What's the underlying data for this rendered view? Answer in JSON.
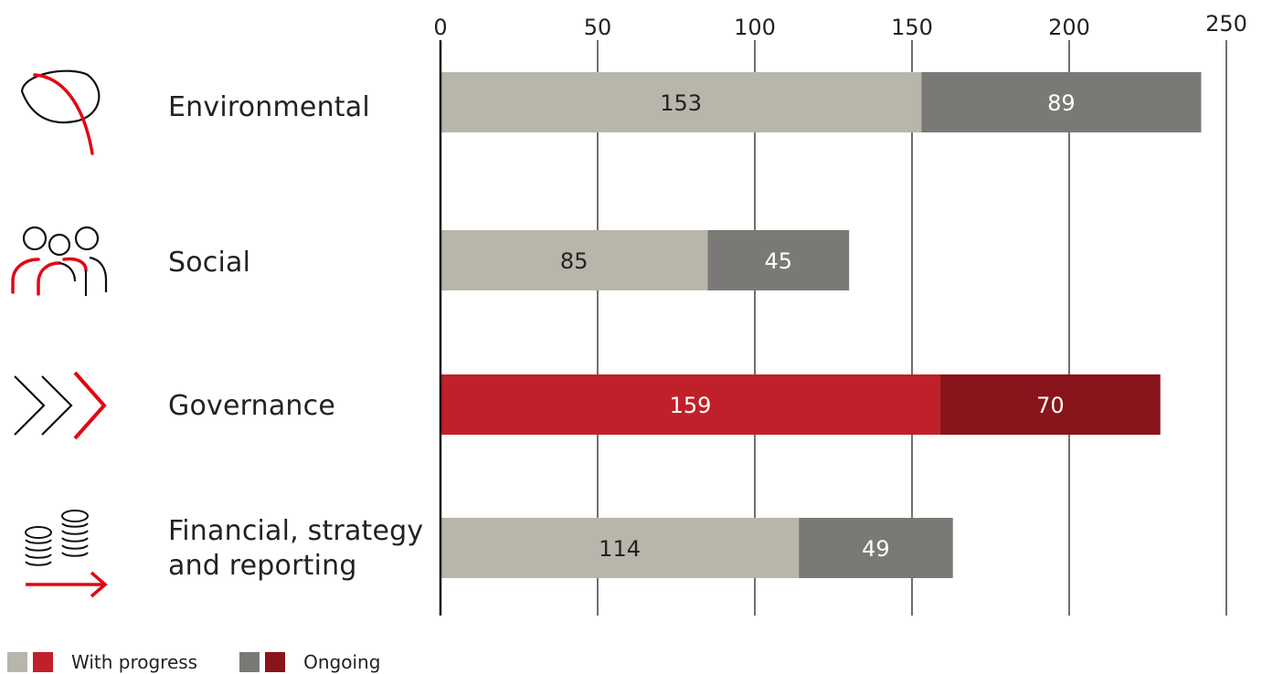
{
  "chart_data": {
    "type": "bar",
    "orientation": "horizontal",
    "stacked": true,
    "categories": [
      "Environmental",
      "Social",
      "Governance",
      "Financial, strategy\nand reporting"
    ],
    "series": [
      {
        "name": "With progress",
        "values": [
          153,
          85,
          159,
          114
        ]
      },
      {
        "name": "Ongoing",
        "values": [
          89,
          45,
          70,
          49
        ]
      }
    ],
    "data_labels": [
      [
        "153",
        "89"
      ],
      [
        "85",
        "45"
      ],
      [
        "159",
        "70"
      ],
      [
        "114",
        "49"
      ]
    ],
    "x_ticks": [
      0,
      50,
      100,
      150,
      200,
      250
    ],
    "xlim": [
      0,
      250
    ],
    "x_axis_position": "top",
    "grid": "vertical",
    "legend_position": "bottom-left",
    "highlighted_category": "Governance",
    "icons": [
      "leaf-icon",
      "people-icon",
      "chevrons-icon",
      "coins-arrow-icon"
    ],
    "colors": {
      "progress": "#b8b6ab",
      "ongoing": "#7b7975",
      "progress_highlight": "#c0202a",
      "ongoing_highlight": "#8a141b",
      "accent": "#e30613",
      "grid": "#222222"
    }
  },
  "legend": {
    "items": [
      {
        "label": "With progress"
      },
      {
        "label": "Ongoing"
      }
    ]
  }
}
